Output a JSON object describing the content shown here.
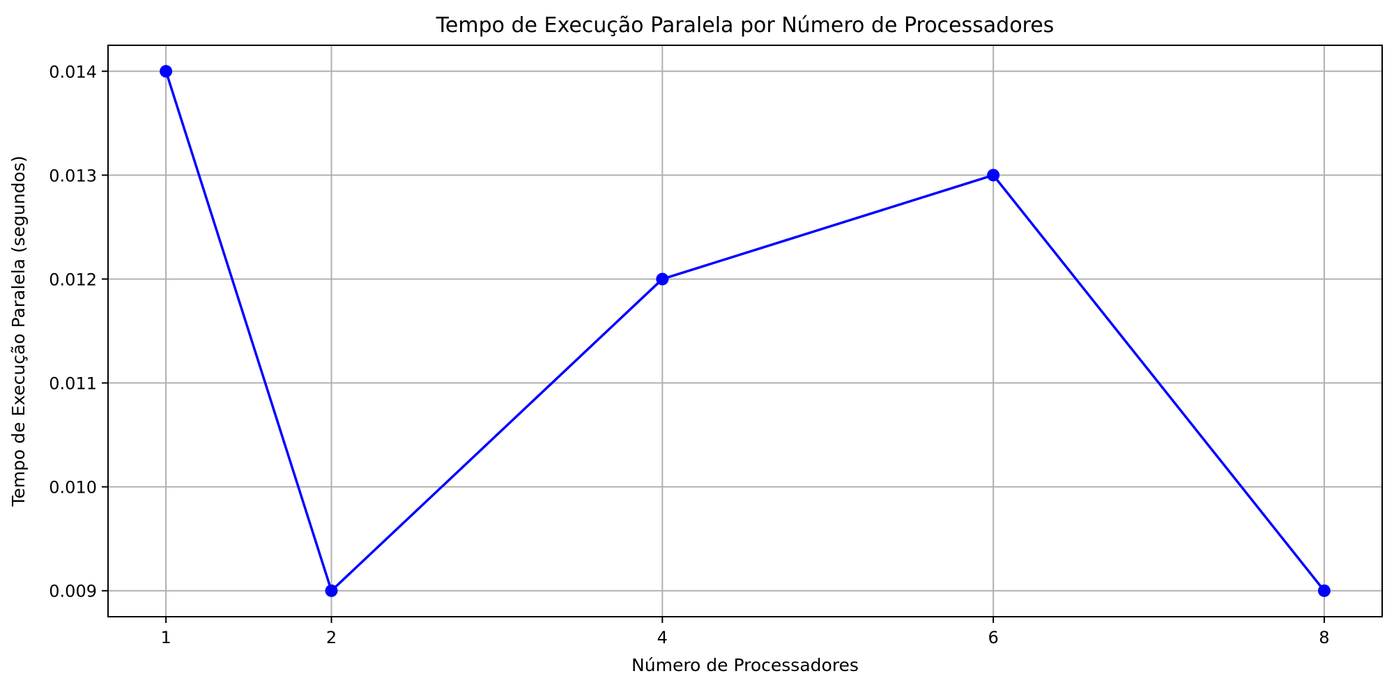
{
  "chart_data": {
    "type": "line",
    "title": "Tempo de Execução Paralela por Número de Processadores",
    "xlabel": "Número de Processadores",
    "ylabel": "Tempo de Execução Paralela (segundos)",
    "x": [
      1,
      2,
      4,
      6,
      8
    ],
    "xticks": [
      "1",
      "2",
      "4",
      "6",
      "8"
    ],
    "yticks": [
      "0.009",
      "0.010",
      "0.011",
      "0.012",
      "0.013",
      "0.014"
    ],
    "series": [
      {
        "values": [
          0.014,
          0.009,
          0.012,
          0.013,
          0.009
        ],
        "color": "#0000ff",
        "marker": "circle"
      }
    ],
    "xlim": [
      0.65,
      8.35
    ],
    "ylim": [
      0.00875,
      0.01425
    ],
    "grid": true,
    "legend": "none"
  }
}
